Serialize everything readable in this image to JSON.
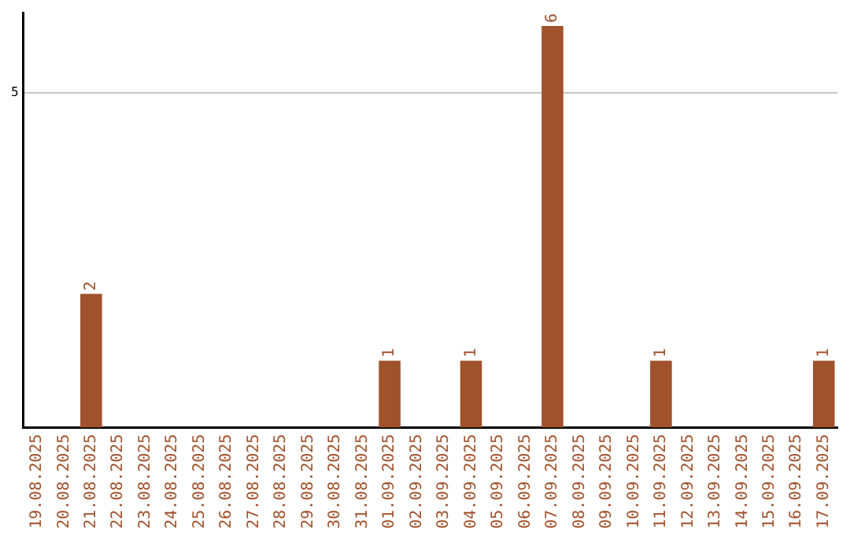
{
  "chart_data": {
    "type": "bar",
    "categories": [
      "19.08.2025",
      "20.08.2025",
      "21.08.2025",
      "22.08.2025",
      "23.08.2025",
      "24.08.2025",
      "25.08.2025",
      "26.08.2025",
      "27.08.2025",
      "28.08.2025",
      "29.08.2025",
      "30.08.2025",
      "31.08.2025",
      "01.09.2025",
      "02.09.2025",
      "03.09.2025",
      "04.09.2025",
      "05.09.2025",
      "06.09.2025",
      "07.09.2025",
      "08.09.2025",
      "09.09.2025",
      "10.09.2025",
      "11.09.2025",
      "12.09.2025",
      "13.09.2025",
      "14.09.2025",
      "15.09.2025",
      "16.09.2025",
      "17.09.2025"
    ],
    "values": [
      0,
      0,
      2,
      0,
      0,
      0,
      0,
      0,
      0,
      0,
      0,
      0,
      0,
      1,
      0,
      0,
      1,
      0,
      0,
      6,
      0,
      0,
      0,
      1,
      0,
      0,
      0,
      0,
      0,
      1
    ],
    "value_labels": [
      null,
      null,
      "2",
      null,
      null,
      null,
      null,
      null,
      null,
      null,
      null,
      null,
      null,
      "1",
      null,
      null,
      "1",
      null,
      null,
      "6",
      null,
      null,
      null,
      "1",
      null,
      null,
      null,
      null,
      null,
      "1"
    ],
    "color": "#a0522d",
    "ylim": [
      0,
      6.2
    ],
    "yticks": [
      5
    ],
    "grid": "y",
    "legend": false
  }
}
